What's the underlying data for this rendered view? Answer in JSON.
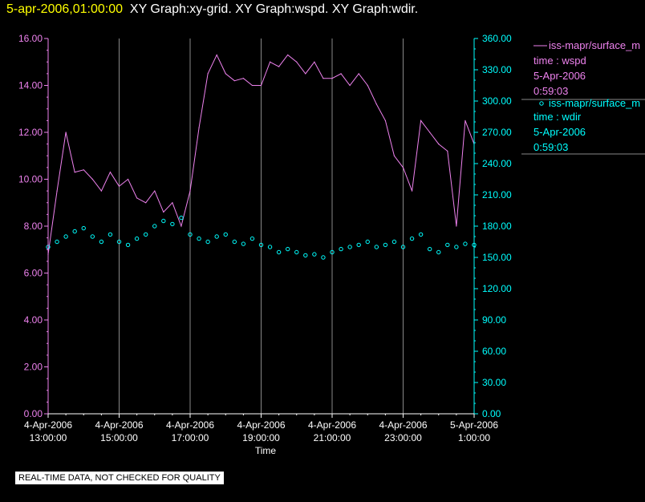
{
  "header": {
    "date": "5-apr-2006,01:00:00",
    "titles": "XY Graph:xy-grid.  XY Graph:wspd.  XY Graph:wdir."
  },
  "colors": {
    "wspd": "#ee82ee",
    "wdir": "#00ffff",
    "grid": "#888888"
  },
  "legend": {
    "series1": {
      "name": "iss-mapr/surface_m",
      "line2": "time : wspd",
      "line3": "5-Apr-2006",
      "line4": "0:59:03"
    },
    "series2": {
      "name": "iss-mapr/surface_m",
      "line2": "time : wdir",
      "line3": "5-Apr-2006",
      "line4": "0:59:03"
    }
  },
  "footer": {
    "quality_note": "REAL-TIME DATA, NOT CHECKED FOR QUALITY"
  },
  "chart_data": {
    "type": "line",
    "xlabel": "Time",
    "x_ticks": [
      {
        "date": "4-Apr-2006",
        "time": "13:00:00",
        "hour": 13
      },
      {
        "date": "4-Apr-2006",
        "time": "15:00:00",
        "hour": 15
      },
      {
        "date": "4-Apr-2006",
        "time": "17:00:00",
        "hour": 17
      },
      {
        "date": "4-Apr-2006",
        "time": "19:00:00",
        "hour": 19
      },
      {
        "date": "4-Apr-2006",
        "time": "21:00:00",
        "hour": 21
      },
      {
        "date": "4-Apr-2006",
        "time": "23:00:00",
        "hour": 23
      },
      {
        "date": "5-Apr-2006",
        "time": "1:00:00",
        "hour": 25
      }
    ],
    "xlim_hours": [
      13,
      25
    ],
    "y_left": {
      "ticks": [
        "0.00",
        "2.00",
        "4.00",
        "6.00",
        "8.00",
        "10.00",
        "12.00",
        "14.00",
        "16.00"
      ],
      "ylim": [
        0,
        16
      ]
    },
    "y_right": {
      "ticks": [
        "0.00",
        "30.00",
        "60.00",
        "90.00",
        "120.00",
        "150.00",
        "180.00",
        "210.00",
        "240.00",
        "270.00",
        "300.00",
        "330.00",
        "360.00"
      ],
      "ylim": [
        0,
        360
      ]
    },
    "series": [
      {
        "name": "wspd",
        "axis": "left",
        "style": "line",
        "x": [
          13.0,
          13.25,
          13.5,
          13.75,
          14.0,
          14.25,
          14.5,
          14.75,
          15.0,
          15.25,
          15.5,
          15.75,
          16.0,
          16.25,
          16.5,
          16.75,
          17.0,
          17.25,
          17.5,
          17.75,
          18.0,
          18.25,
          18.5,
          18.75,
          19.0,
          19.25,
          19.5,
          19.75,
          20.0,
          20.25,
          20.5,
          20.75,
          21.0,
          21.25,
          21.5,
          21.75,
          22.0,
          22.25,
          22.5,
          22.75,
          23.0,
          23.25,
          23.5,
          23.75,
          24.0,
          24.25,
          24.5,
          24.75,
          25.0
        ],
        "y": [
          6.8,
          9.5,
          12.0,
          10.3,
          10.4,
          10.0,
          9.5,
          10.3,
          9.7,
          10.0,
          9.2,
          9.0,
          9.5,
          8.6,
          9.0,
          8.0,
          9.5,
          12.2,
          14.5,
          15.3,
          14.5,
          14.2,
          14.3,
          14.0,
          14.0,
          15.0,
          14.8,
          15.3,
          15.0,
          14.5,
          15.0,
          14.3,
          14.3,
          14.5,
          14.0,
          14.5,
          14.0,
          13.2,
          12.5,
          11.0,
          10.5,
          9.5,
          12.5,
          12.0,
          11.5,
          11.2,
          8.0,
          12.5,
          11.5
        ]
      },
      {
        "name": "wdir",
        "axis": "right",
        "style": "points",
        "x": [
          13.0,
          13.25,
          13.5,
          13.75,
          14.0,
          14.25,
          14.5,
          14.75,
          15.0,
          15.25,
          15.5,
          15.75,
          16.0,
          16.25,
          16.5,
          16.75,
          17.0,
          17.25,
          17.5,
          17.75,
          18.0,
          18.25,
          18.5,
          18.75,
          19.0,
          19.25,
          19.5,
          19.75,
          20.0,
          20.25,
          20.5,
          20.75,
          21.0,
          21.25,
          21.5,
          21.75,
          22.0,
          22.25,
          22.5,
          22.75,
          23.0,
          23.25,
          23.5,
          23.75,
          24.0,
          24.25,
          24.5,
          24.75,
          25.0
        ],
        "y": [
          160,
          165,
          170,
          175,
          178,
          170,
          165,
          172,
          165,
          162,
          168,
          172,
          180,
          185,
          182,
          188,
          172,
          168,
          165,
          170,
          172,
          165,
          163,
          168,
          162,
          160,
          155,
          158,
          155,
          152,
          153,
          150,
          155,
          158,
          160,
          162,
          165,
          160,
          162,
          165,
          160,
          168,
          172,
          158,
          155,
          162,
          160,
          163,
          162
        ]
      }
    ]
  }
}
